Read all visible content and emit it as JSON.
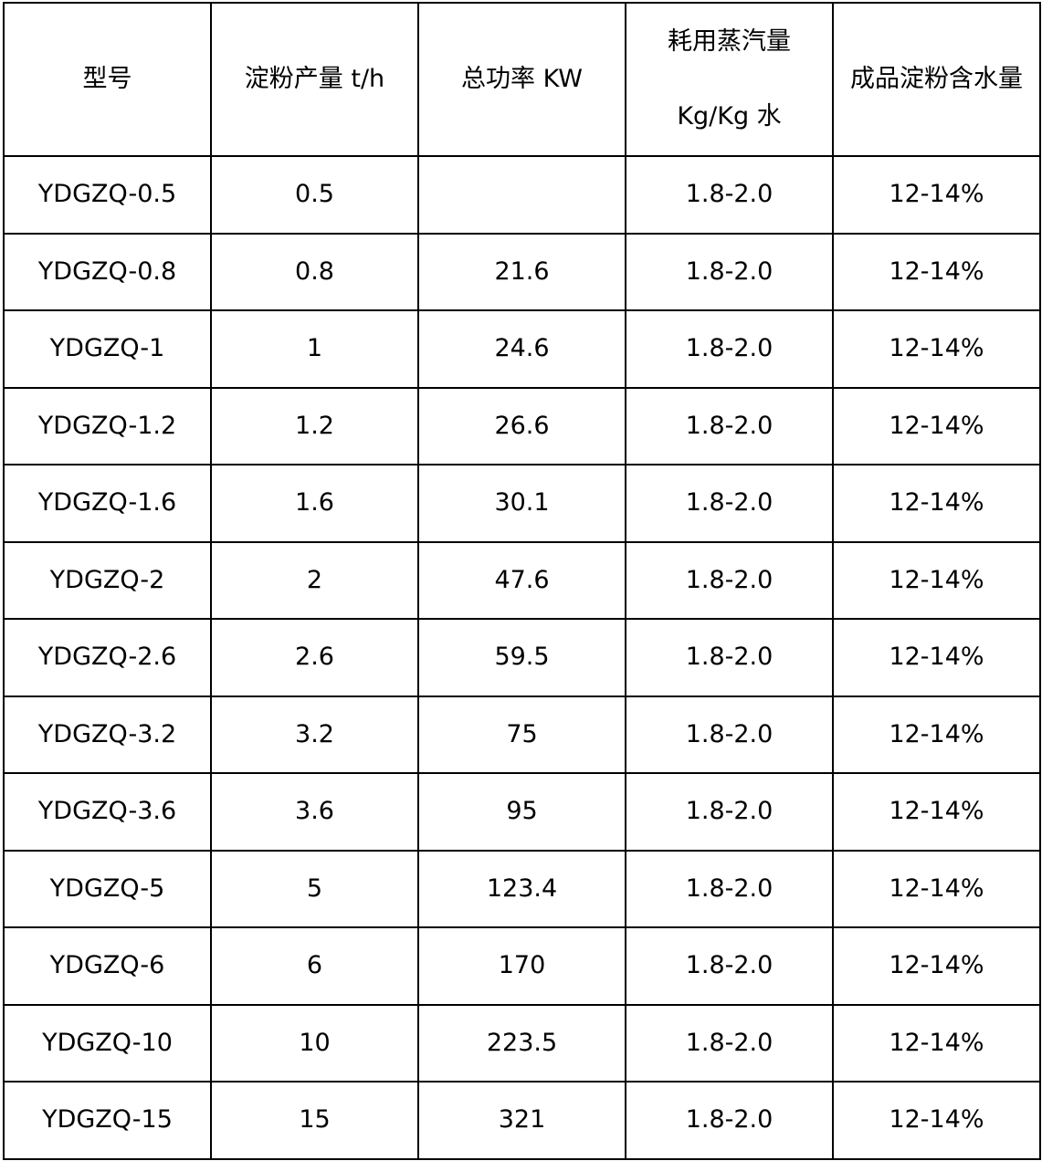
{
  "table": {
    "headers": {
      "model": "型号",
      "output": "淀粉产量 t/h",
      "power": "总功率 KW",
      "steam_line1": "耗用蒸汽量",
      "steam_line2": "Kg/Kg 水",
      "moisture": "成品淀粉含水量"
    },
    "rows": [
      {
        "model": "YDGZQ-0.5",
        "output": "0.5",
        "power": "",
        "steam": "1.8-2.0",
        "moisture": "12-14%"
      },
      {
        "model": "YDGZQ-0.8",
        "output": "0.8",
        "power": "21.6",
        "steam": "1.8-2.0",
        "moisture": "12-14%"
      },
      {
        "model": "YDGZQ-1",
        "output": "1",
        "power": "24.6",
        "steam": "1.8-2.0",
        "moisture": "12-14%"
      },
      {
        "model": "YDGZQ-1.2",
        "output": "1.2",
        "power": "26.6",
        "steam": "1.8-2.0",
        "moisture": "12-14%"
      },
      {
        "model": "YDGZQ-1.6",
        "output": "1.6",
        "power": "30.1",
        "steam": "1.8-2.0",
        "moisture": "12-14%"
      },
      {
        "model": "YDGZQ-2",
        "output": "2",
        "power": "47.6",
        "steam": "1.8-2.0",
        "moisture": "12-14%"
      },
      {
        "model": "YDGZQ-2.6",
        "output": "2.6",
        "power": "59.5",
        "steam": "1.8-2.0",
        "moisture": "12-14%"
      },
      {
        "model": "YDGZQ-3.2",
        "output": "3.2",
        "power": "75",
        "steam": "1.8-2.0",
        "moisture": "12-14%"
      },
      {
        "model": "YDGZQ-3.6",
        "output": "3.6",
        "power": "95",
        "steam": "1.8-2.0",
        "moisture": "12-14%"
      },
      {
        "model": "YDGZQ-5",
        "output": "5",
        "power": "123.4",
        "steam": "1.8-2.0",
        "moisture": "12-14%"
      },
      {
        "model": "YDGZQ-6",
        "output": "6",
        "power": "170",
        "steam": "1.8-2.0",
        "moisture": "12-14%"
      },
      {
        "model": "YDGZQ-10",
        "output": "10",
        "power": "223.5",
        "steam": "1.8-2.0",
        "moisture": "12-14%"
      },
      {
        "model": "YDGZQ-15",
        "output": "15",
        "power": "321",
        "steam": "1.8-2.0",
        "moisture": "12-14%"
      }
    ]
  }
}
